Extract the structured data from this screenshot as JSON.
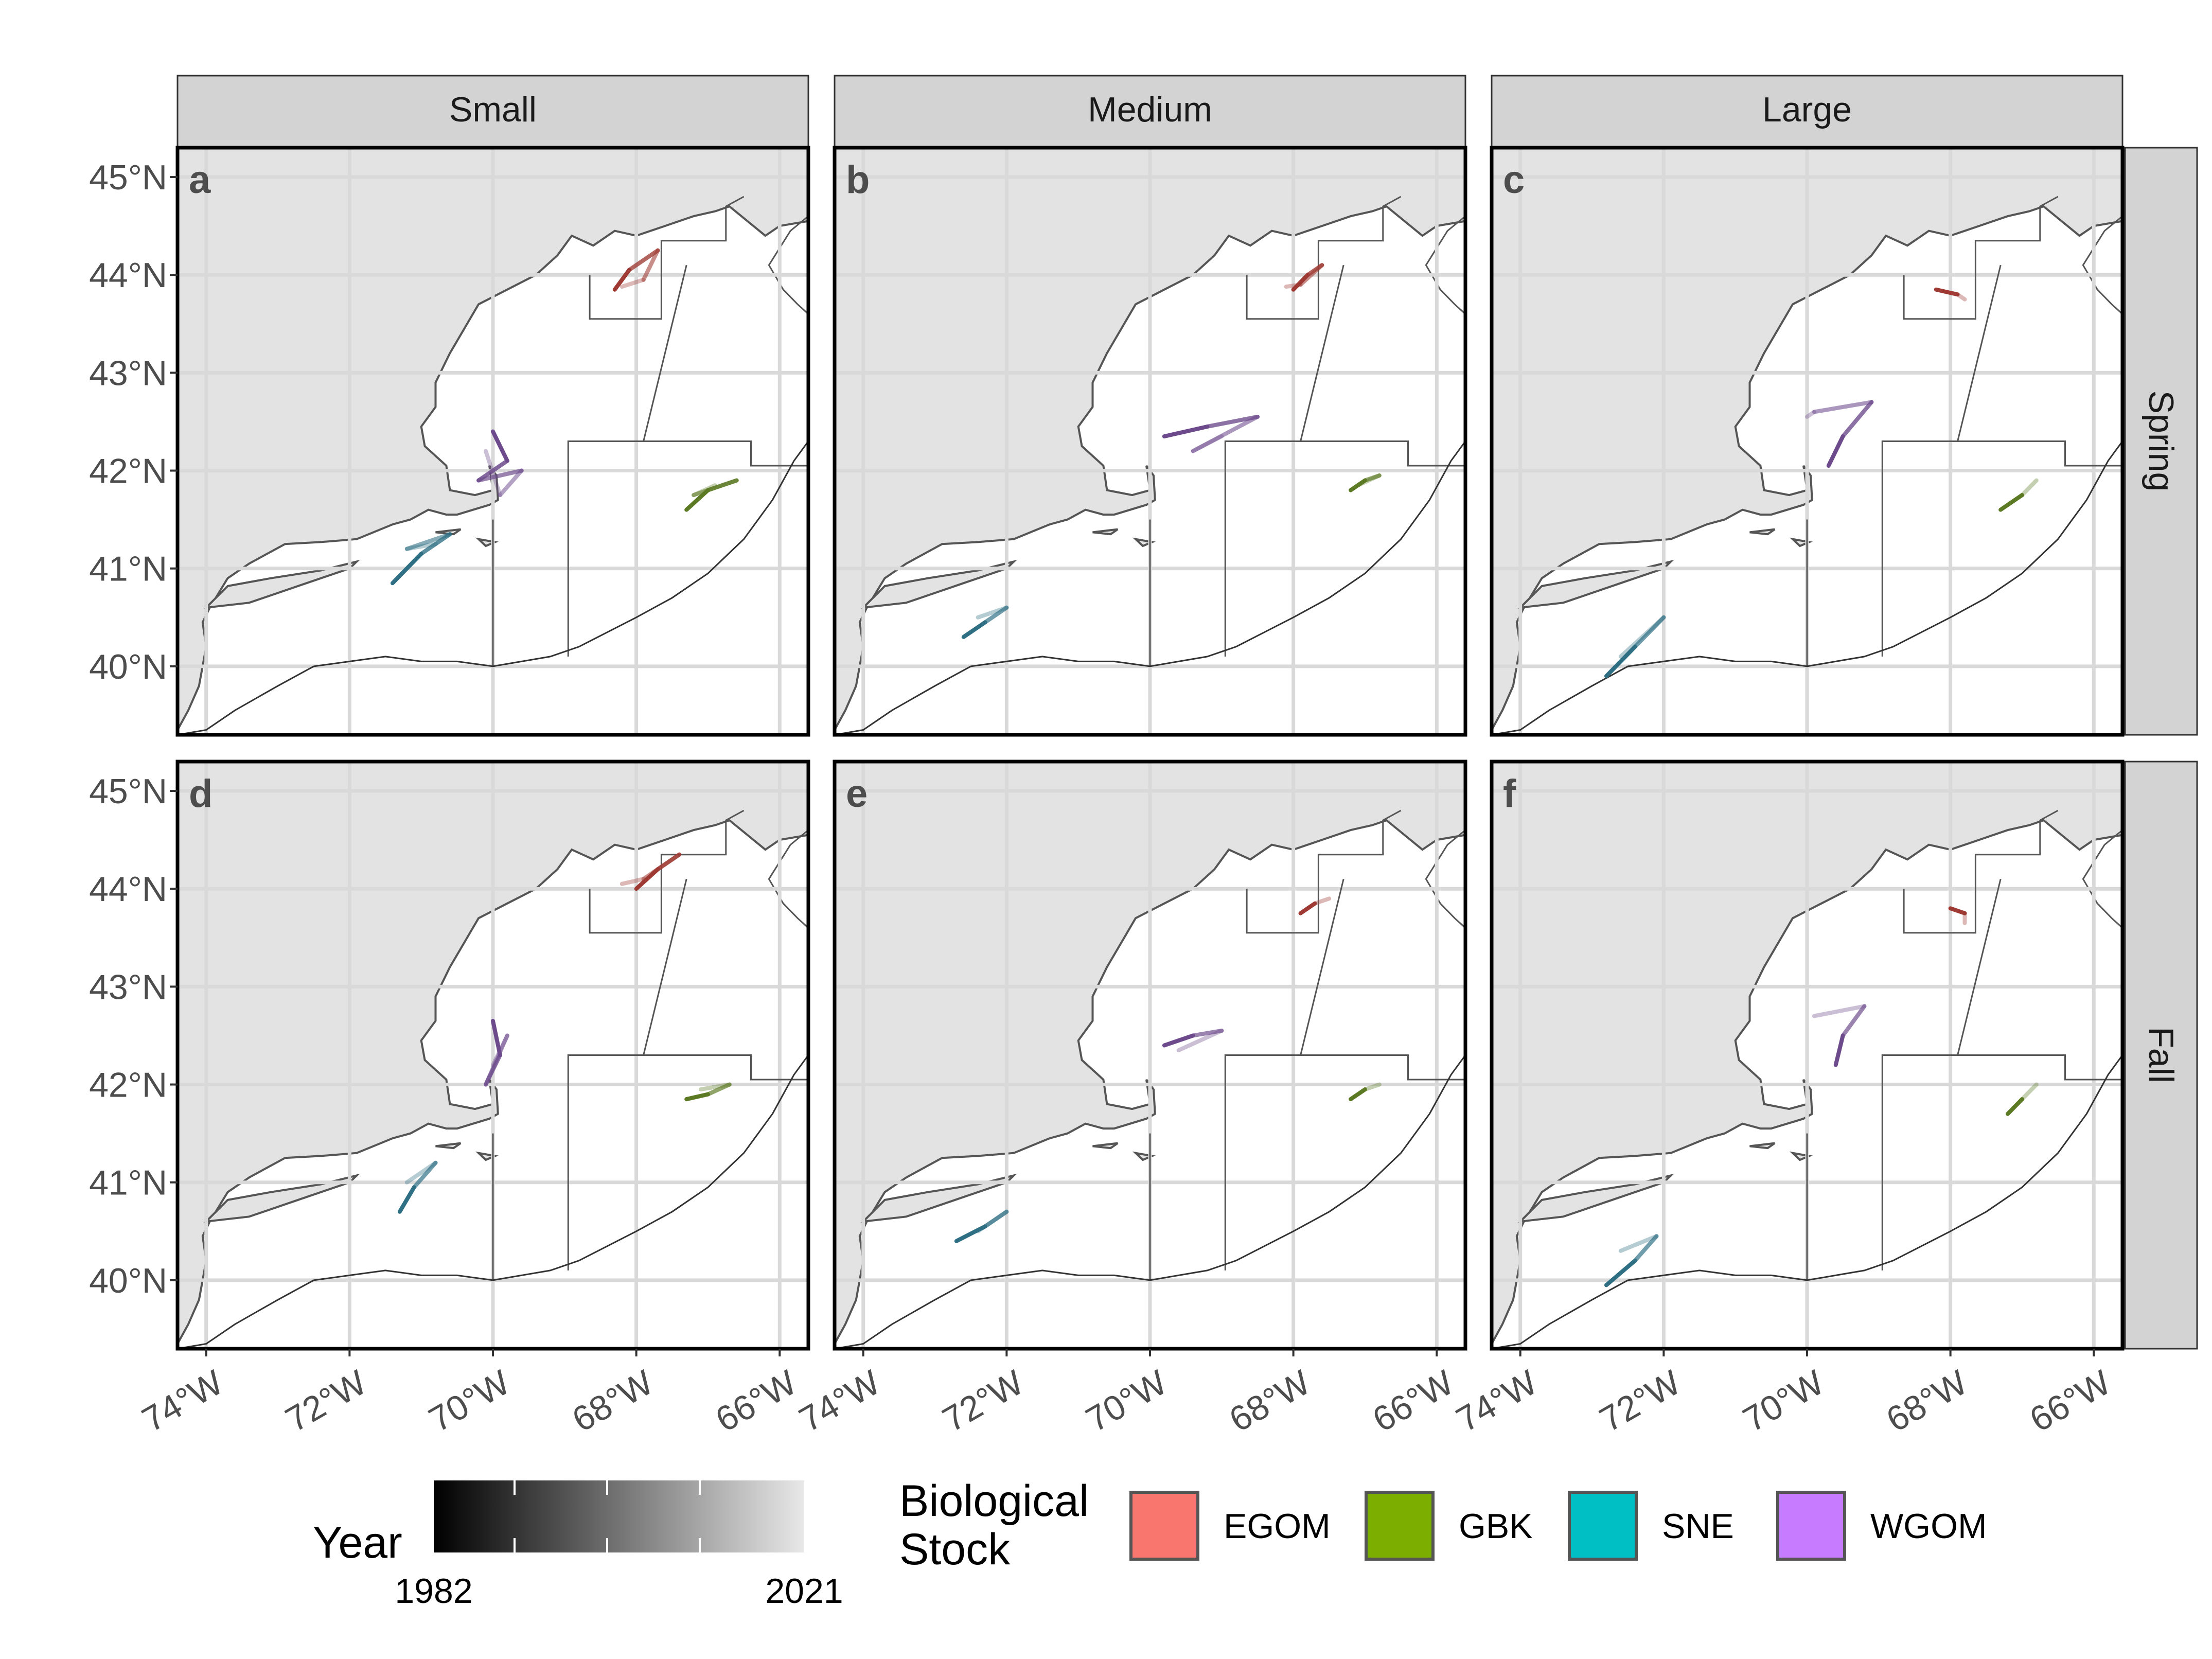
{
  "strips": {
    "columns": [
      "Small",
      "Medium",
      "Large"
    ],
    "rows": [
      "Spring",
      "Fall"
    ]
  },
  "panel_tags": [
    "a",
    "b",
    "c",
    "d",
    "e",
    "f"
  ],
  "axis_labels": {
    "lat": [
      "45°N",
      "44°N",
      "43°N",
      "42°N",
      "41°N",
      "40°N"
    ],
    "lon": [
      "74°W",
      "72°W",
      "70°W",
      "68°W",
      "66°W"
    ]
  },
  "legend": {
    "year_title": "Year",
    "year_min": "1982",
    "year_max": "2021",
    "stock_title_line1": "Biological",
    "stock_title_line2": "Stock",
    "stocks": [
      {
        "name": "EGOM",
        "color": "#f8766d"
      },
      {
        "name": "GBK",
        "color": "#7cae00"
      },
      {
        "name": "SNE",
        "color": "#00bfc4"
      },
      {
        "name": "WGOM",
        "color": "#c77cff"
      }
    ]
  },
  "colors": {
    "land": "#e3e3e3",
    "ocean": "#ffffff",
    "grid": "#d9d9d9",
    "coast": "#555555",
    "strip": "#d3d3d3",
    "EGOM": "#9e3a33",
    "GBK": "#5c7a24",
    "SNE": "#2e6f84",
    "WGOM": "#6c4a8c"
  },
  "map_extent": {
    "lon": [
      -74.4,
      -65.6
    ],
    "lat": [
      39.3,
      45.3
    ]
  },
  "chart_data": {
    "type": "map-trajectories",
    "description_units": "center-of-biomass track per year (lon, lat in degrees)",
    "panels": [
      {
        "tag": "a",
        "size": "Small",
        "season": "Spring",
        "tracks": {
          "EGOM": [
            [
              -68.3,
              43.85
            ],
            [
              -68.1,
              44.05
            ],
            [
              -67.7,
              44.25
            ],
            [
              -67.9,
              43.95
            ],
            [
              -68.2,
              43.88
            ]
          ],
          "WGOM": [
            [
              -70.0,
              42.4
            ],
            [
              -69.8,
              42.1
            ],
            [
              -70.2,
              41.9
            ],
            [
              -69.6,
              42.0
            ],
            [
              -69.9,
              41.75
            ],
            [
              -70.1,
              42.2
            ]
          ],
          "SNE": [
            [
              -71.4,
              40.85
            ],
            [
              -71.0,
              41.15
            ],
            [
              -70.6,
              41.35
            ],
            [
              -71.2,
              41.2
            ],
            [
              -70.8,
              41.25
            ]
          ],
          "GBK": [
            [
              -67.3,
              41.6
            ],
            [
              -67.0,
              41.8
            ],
            [
              -66.6,
              41.9
            ],
            [
              -67.2,
              41.75
            ],
            [
              -66.9,
              41.85
            ]
          ]
        }
      },
      {
        "tag": "b",
        "size": "Medium",
        "season": "Spring",
        "tracks": {
          "EGOM": [
            [
              -68.0,
              43.85
            ],
            [
              -67.8,
              44.0
            ],
            [
              -67.6,
              44.1
            ],
            [
              -67.9,
              43.9
            ],
            [
              -68.1,
              43.88
            ]
          ],
          "WGOM": [
            [
              -69.8,
              42.35
            ],
            [
              -69.2,
              42.45
            ],
            [
              -68.5,
              42.55
            ],
            [
              -69.4,
              42.2
            ],
            [
              -69.0,
              42.35
            ]
          ],
          "SNE": [
            [
              -72.6,
              40.3
            ],
            [
              -72.3,
              40.45
            ],
            [
              -72.0,
              40.6
            ],
            [
              -72.4,
              40.5
            ]
          ],
          "GBK": [
            [
              -67.2,
              41.8
            ],
            [
              -67.0,
              41.9
            ],
            [
              -66.8,
              41.95
            ],
            [
              -67.1,
              41.85
            ]
          ]
        }
      },
      {
        "tag": "c",
        "size": "Large",
        "season": "Spring",
        "tracks": {
          "EGOM": [
            [
              -68.2,
              43.85
            ],
            [
              -67.9,
              43.8
            ],
            [
              -67.8,
              43.75
            ]
          ],
          "WGOM": [
            [
              -69.7,
              42.05
            ],
            [
              -69.5,
              42.35
            ],
            [
              -69.1,
              42.7
            ],
            [
              -69.9,
              42.6
            ],
            [
              -70.0,
              42.55
            ]
          ],
          "SNE": [
            [
              -72.8,
              39.9
            ],
            [
              -72.4,
              40.2
            ],
            [
              -72.0,
              40.5
            ],
            [
              -72.6,
              40.1
            ]
          ],
          "GBK": [
            [
              -67.3,
              41.6
            ],
            [
              -67.0,
              41.75
            ],
            [
              -66.8,
              41.9
            ]
          ]
        }
      },
      {
        "tag": "d",
        "size": "Small",
        "season": "Fall",
        "tracks": {
          "EGOM": [
            [
              -68.0,
              44.0
            ],
            [
              -67.7,
              44.2
            ],
            [
              -67.4,
              44.35
            ],
            [
              -67.9,
              44.1
            ],
            [
              -68.2,
              44.05
            ]
          ],
          "WGOM": [
            [
              -70.0,
              42.65
            ],
            [
              -69.9,
              42.3
            ],
            [
              -70.1,
              42.0
            ],
            [
              -69.8,
              42.5
            ],
            [
              -70.0,
              42.2
            ]
          ],
          "SNE": [
            [
              -71.3,
              40.7
            ],
            [
              -71.1,
              40.95
            ],
            [
              -70.8,
              41.2
            ],
            [
              -71.2,
              41.0
            ]
          ],
          "GBK": [
            [
              -67.3,
              41.85
            ],
            [
              -67.0,
              41.9
            ],
            [
              -66.7,
              42.0
            ],
            [
              -67.1,
              41.95
            ]
          ]
        }
      },
      {
        "tag": "e",
        "size": "Medium",
        "season": "Fall",
        "tracks": {
          "EGOM": [
            [
              -67.9,
              43.75
            ],
            [
              -67.7,
              43.85
            ],
            [
              -67.5,
              43.9
            ]
          ],
          "WGOM": [
            [
              -69.8,
              42.4
            ],
            [
              -69.4,
              42.5
            ],
            [
              -69.0,
              42.55
            ],
            [
              -69.6,
              42.35
            ]
          ],
          "SNE": [
            [
              -72.7,
              40.4
            ],
            [
              -72.3,
              40.55
            ],
            [
              -72.0,
              40.7
            ],
            [
              -72.4,
              40.5
            ]
          ],
          "GBK": [
            [
              -67.2,
              41.85
            ],
            [
              -67.0,
              41.95
            ],
            [
              -66.8,
              42.0
            ]
          ]
        }
      },
      {
        "tag": "f",
        "size": "Large",
        "season": "Fall",
        "tracks": {
          "EGOM": [
            [
              -68.0,
              43.8
            ],
            [
              -67.8,
              43.75
            ],
            [
              -67.8,
              43.65
            ]
          ],
          "WGOM": [
            [
              -69.6,
              42.2
            ],
            [
              -69.5,
              42.5
            ],
            [
              -69.2,
              42.8
            ],
            [
              -69.9,
              42.7
            ]
          ],
          "SNE": [
            [
              -72.8,
              39.95
            ],
            [
              -72.4,
              40.2
            ],
            [
              -72.1,
              40.45
            ],
            [
              -72.6,
              40.3
            ]
          ],
          "GBK": [
            [
              -67.2,
              41.7
            ],
            [
              -67.0,
              41.85
            ],
            [
              -66.8,
              42.0
            ]
          ]
        }
      }
    ]
  }
}
